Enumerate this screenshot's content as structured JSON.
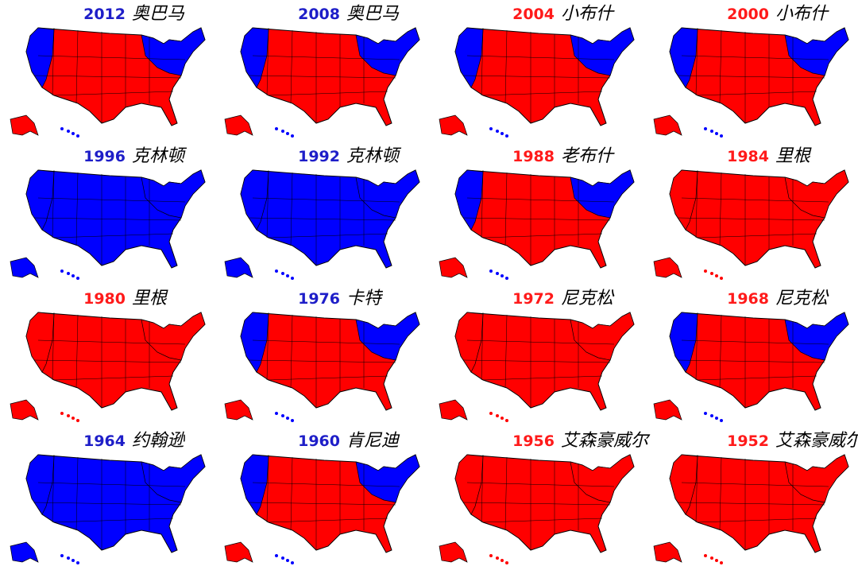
{
  "maps": [
    {
      "year": "2012",
      "name": "奥巴马",
      "year_color": "#1e1ec8",
      "fill": "#ff0000",
      "accent": "#0000ff"
    },
    {
      "year": "2008",
      "name": "奥巴马",
      "year_color": "#1e1ec8",
      "fill": "#ff0000",
      "accent": "#0000ff"
    },
    {
      "year": "2004",
      "name": "小布什",
      "year_color": "#ff1a1a",
      "fill": "#ff0000",
      "accent": "#0000ff"
    },
    {
      "year": "2000",
      "name": "小布什",
      "year_color": "#ff1a1a",
      "fill": "#ff0000",
      "accent": "#0000ff"
    },
    {
      "year": "1996",
      "name": "克林顿",
      "year_color": "#1e1ec8",
      "fill": "#0000ff",
      "accent": "#0000ff"
    },
    {
      "year": "1992",
      "name": "克林顿",
      "year_color": "#1e1ec8",
      "fill": "#0000ff",
      "accent": "#0000ff"
    },
    {
      "year": "1988",
      "name": "老布什",
      "year_color": "#ff1a1a",
      "fill": "#ff0000",
      "accent": "#0000ff"
    },
    {
      "year": "1984",
      "name": "里根",
      "year_color": "#ff1a1a",
      "fill": "#ff0000",
      "accent": "#ff0000"
    },
    {
      "year": "1980",
      "name": "里根",
      "year_color": "#ff1a1a",
      "fill": "#ff0000",
      "accent": "#ff0000"
    },
    {
      "year": "1976",
      "name": "卡特",
      "year_color": "#1e1ec8",
      "fill": "#ff0000",
      "accent": "#0000ff"
    },
    {
      "year": "1972",
      "name": "尼克松",
      "year_color": "#ff1a1a",
      "fill": "#ff0000",
      "accent": "#ff0000"
    },
    {
      "year": "1968",
      "name": "尼克松",
      "year_color": "#ff1a1a",
      "fill": "#ff0000",
      "accent": "#0000ff"
    },
    {
      "year": "1964",
      "name": "约翰逊",
      "year_color": "#1e1ec8",
      "fill": "#0000ff",
      "accent": "#0000ff"
    },
    {
      "year": "1960",
      "name": "肯尼迪",
      "year_color": "#1e1ec8",
      "fill": "#ff0000",
      "accent": "#0000ff"
    },
    {
      "year": "1956",
      "name": "艾森豪威尔",
      "year_color": "#ff1a1a",
      "fill": "#ff0000",
      "accent": "#ff0000"
    },
    {
      "year": "1952",
      "name": "艾森豪威尔",
      "year_color": "#ff1a1a",
      "fill": "#ff0000",
      "accent": "#ff0000"
    }
  ]
}
